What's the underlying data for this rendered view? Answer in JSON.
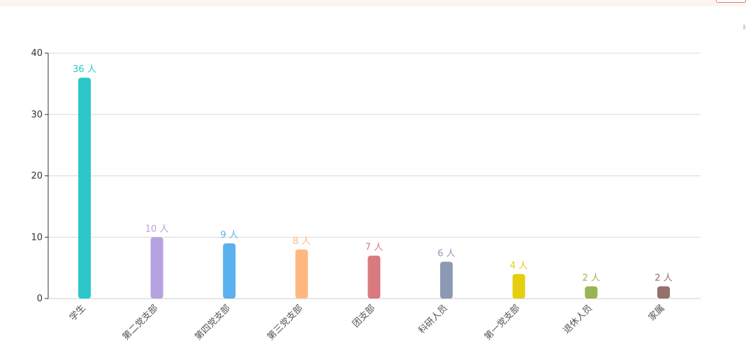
{
  "chart_data": {
    "type": "bar",
    "categories": [
      "学生",
      "第二党支部",
      "第四党支部",
      "第三党支部",
      "团支部",
      "科研人员",
      "第一党支部",
      "退休人员",
      "家属"
    ],
    "values": [
      36,
      10,
      9,
      8,
      7,
      6,
      4,
      2,
      2
    ],
    "value_unit": "人",
    "colors": [
      "#2ec7c9",
      "#b6a2de",
      "#5ab1ef",
      "#ffb980",
      "#d87a80",
      "#8d98b3",
      "#e5cf0d",
      "#97b552",
      "#95706d"
    ],
    "ylim": [
      0,
      40
    ],
    "yticks": [
      0,
      10,
      20,
      30,
      40
    ],
    "grid": true,
    "title": "",
    "xlabel": "",
    "ylabel": ""
  }
}
